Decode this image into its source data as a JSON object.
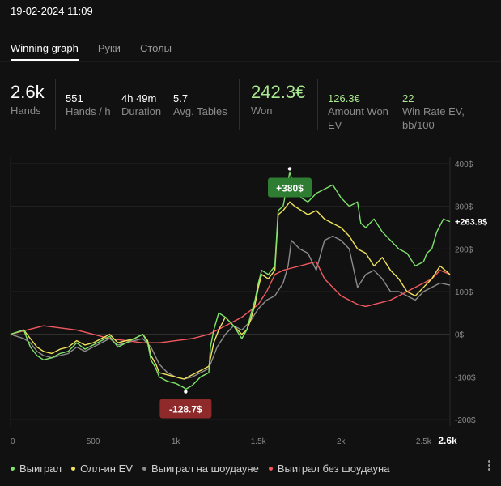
{
  "header": {
    "datetime": "19-02-2024 11:09"
  },
  "tabs": [
    {
      "label": "Winning graph",
      "active": true
    },
    {
      "label": "Руки",
      "active": false
    },
    {
      "label": "Столы",
      "active": false
    }
  ],
  "stats": {
    "hands": {
      "value": "2.6k",
      "label": "Hands"
    },
    "hands_per_hour": {
      "value": "551",
      "label": "Hands / h"
    },
    "duration": {
      "value": "4h 49m",
      "label": "Duration"
    },
    "avg_tables": {
      "value": "5.7",
      "label": "Avg. Tables"
    },
    "won": {
      "value": "242.3€",
      "label": "Won"
    },
    "amount_won_ev": {
      "value": "126.3€",
      "label": "Amount Won EV"
    },
    "win_rate_ev": {
      "value": "22",
      "label": "Win Rate EV, bb/100"
    }
  },
  "colors": {
    "green": "#7ee36b",
    "yellow": "#f0e25a",
    "gray": "#8c8c8c",
    "red": "#f0595f",
    "won_text": "#a8e890",
    "badge_max": "#2f7d32",
    "badge_min": "#8f2a2a"
  },
  "chart_data": {
    "type": "line",
    "x_ticks": [
      "0",
      "500",
      "1k",
      "1.5k",
      "2k",
      "2.5k"
    ],
    "x_end_label": "2.6k",
    "y_ticks": [
      "400$",
      "300$",
      "200$",
      "100$",
      "0$",
      "-100$",
      "-200$"
    ],
    "y_tick_values": [
      400,
      300,
      200,
      100,
      0,
      -100,
      -200
    ],
    "xlim": [
      0,
      2660
    ],
    "ylim": [
      -215,
      415
    ],
    "max_badge": "+380$",
    "max_point": {
      "x": 1690,
      "y": 380
    },
    "min_badge": "-128.7$",
    "min_point": {
      "x": 1060,
      "y": -128.7
    },
    "end_label": "+263.9$",
    "series": [
      {
        "name": "Выиграл",
        "color_key": "green",
        "x": [
          0,
          80,
          120,
          160,
          200,
          250,
          300,
          350,
          400,
          450,
          500,
          550,
          600,
          650,
          700,
          750,
          800,
          830,
          850,
          880,
          900,
          950,
          1000,
          1050,
          1060,
          1100,
          1150,
          1200,
          1210,
          1230,
          1260,
          1300,
          1350,
          1400,
          1430,
          1450,
          1480,
          1500,
          1520,
          1560,
          1600,
          1620,
          1650,
          1690,
          1720,
          1760,
          1800,
          1850,
          1900,
          1950,
          2000,
          2050,
          2100,
          2120,
          2150,
          2200,
          2250,
          2300,
          2350,
          2400,
          2450,
          2500,
          2520,
          2550,
          2580,
          2620,
          2660
        ],
        "y": [
          0,
          10,
          -30,
          -50,
          -60,
          -55,
          -45,
          -40,
          -20,
          -35,
          -25,
          -15,
          -5,
          -30,
          -20,
          -10,
          0,
          -20,
          -60,
          -80,
          -100,
          -110,
          -115,
          -125,
          -128.7,
          -120,
          -100,
          -90,
          -30,
          10,
          50,
          40,
          20,
          -10,
          10,
          40,
          80,
          120,
          150,
          140,
          160,
          290,
          300,
          380,
          340,
          320,
          310,
          330,
          340,
          350,
          320,
          300,
          310,
          260,
          250,
          270,
          240,
          220,
          200,
          190,
          160,
          170,
          190,
          200,
          240,
          270,
          264
        ]
      },
      {
        "name": "Олл-ин EV",
        "color_key": "yellow",
        "x": [
          0,
          80,
          120,
          160,
          200,
          250,
          300,
          350,
          400,
          450,
          500,
          550,
          600,
          650,
          700,
          750,
          800,
          830,
          850,
          880,
          900,
          950,
          1000,
          1050,
          1100,
          1150,
          1200,
          1230,
          1260,
          1300,
          1350,
          1400,
          1430,
          1450,
          1480,
          1500,
          1520,
          1560,
          1600,
          1620,
          1650,
          1690,
          1720,
          1760,
          1800,
          1850,
          1900,
          1950,
          2000,
          2050,
          2100,
          2150,
          2200,
          2250,
          2300,
          2350,
          2400,
          2450,
          2500,
          2550,
          2600,
          2660
        ],
        "y": [
          0,
          10,
          -10,
          -30,
          -40,
          -45,
          -35,
          -30,
          -15,
          -25,
          -20,
          -10,
          0,
          -20,
          -15,
          -10,
          0,
          -15,
          -50,
          -70,
          -90,
          -95,
          -100,
          -105,
          -95,
          -85,
          -75,
          -20,
          10,
          40,
          20,
          0,
          10,
          30,
          70,
          110,
          140,
          130,
          150,
          280,
          290,
          310,
          300,
          290,
          280,
          290,
          270,
          260,
          250,
          230,
          200,
          190,
          160,
          180,
          150,
          130,
          100,
          90,
          110,
          130,
          160,
          140
        ]
      },
      {
        "name": "Выиграл на шоудауне",
        "color_key": "gray",
        "x": [
          0,
          80,
          120,
          160,
          200,
          250,
          300,
          350,
          400,
          450,
          500,
          550,
          600,
          650,
          700,
          750,
          800,
          850,
          900,
          950,
          1000,
          1050,
          1100,
          1150,
          1200,
          1250,
          1300,
          1350,
          1400,
          1450,
          1500,
          1550,
          1600,
          1650,
          1680,
          1700,
          1750,
          1800,
          1850,
          1900,
          1950,
          2000,
          2050,
          2100,
          2150,
          2200,
          2250,
          2300,
          2350,
          2400,
          2450,
          2500,
          2550,
          2600,
          2660
        ],
        "y": [
          0,
          -10,
          -20,
          -40,
          -50,
          -55,
          -50,
          -45,
          -30,
          -40,
          -30,
          -20,
          -10,
          -25,
          -20,
          -15,
          -10,
          -30,
          -70,
          -90,
          -100,
          -105,
          -100,
          -90,
          -80,
          -30,
          0,
          20,
          10,
          30,
          60,
          80,
          90,
          120,
          160,
          220,
          200,
          190,
          150,
          220,
          230,
          220,
          200,
          110,
          140,
          150,
          130,
          100,
          100,
          90,
          80,
          100,
          110,
          120,
          115
        ]
      },
      {
        "name": "Выиграл без шоудауна",
        "color_key": "red",
        "x": [
          0,
          100,
          200,
          300,
          400,
          500,
          600,
          700,
          800,
          900,
          1000,
          1100,
          1200,
          1300,
          1400,
          1500,
          1550,
          1600,
          1650,
          1700,
          1750,
          1800,
          1850,
          1900,
          1950,
          2000,
          2050,
          2100,
          2150,
          2200,
          2250,
          2300,
          2350,
          2400,
          2450,
          2500,
          2550,
          2600,
          2660
        ],
        "y": [
          0,
          10,
          20,
          15,
          10,
          0,
          -10,
          -15,
          -20,
          -20,
          -15,
          -10,
          0,
          20,
          40,
          70,
          100,
          140,
          150,
          155,
          160,
          165,
          170,
          130,
          110,
          90,
          80,
          70,
          65,
          70,
          75,
          80,
          90,
          100,
          110,
          120,
          130,
          150,
          140
        ]
      }
    ]
  },
  "legend": [
    {
      "label": "Выиграл",
      "color_key": "green"
    },
    {
      "label": "Олл-ин EV",
      "color_key": "yellow"
    },
    {
      "label": "Выиграл на шоудауне",
      "color_key": "gray"
    },
    {
      "label": "Выиграл без шоудауна",
      "color_key": "red"
    }
  ]
}
